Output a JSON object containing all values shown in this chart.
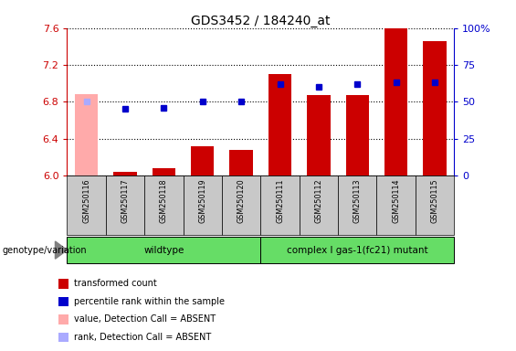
{
  "title": "GDS3452 / 184240_at",
  "samples": [
    "GSM250116",
    "GSM250117",
    "GSM250118",
    "GSM250119",
    "GSM250120",
    "GSM250111",
    "GSM250112",
    "GSM250113",
    "GSM250114",
    "GSM250115"
  ],
  "transformed_count": [
    6.88,
    6.04,
    6.08,
    6.32,
    6.28,
    7.1,
    6.87,
    6.87,
    7.6,
    7.46
  ],
  "percentile_rank": [
    50,
    45,
    46,
    50,
    50,
    62,
    60,
    62,
    63,
    63
  ],
  "absent_flags": [
    true,
    false,
    false,
    false,
    false,
    false,
    false,
    false,
    false,
    false
  ],
  "group_labels": [
    "wildtype",
    "complex I gas-1(fc21) mutant"
  ],
  "group_ranges": [
    [
      0,
      4
    ],
    [
      5,
      9
    ]
  ],
  "ylim_left": [
    6.0,
    7.6
  ],
  "ylim_right": [
    0,
    100
  ],
  "yticks_left": [
    6.0,
    6.4,
    6.8,
    7.2,
    7.6
  ],
  "yticks_right": [
    0,
    25,
    50,
    75,
    100
  ],
  "bar_width": 0.6,
  "bar_color_present": "#cc0000",
  "bar_color_absent": "#ffaaaa",
  "dot_color_present": "#0000cc",
  "dot_color_absent": "#aaaaff",
  "background_color": "#ffffff",
  "left_axis_color": "#cc0000",
  "right_axis_color": "#0000cc",
  "genotype_label": "genotype/variation",
  "green_color": "#66dd66",
  "gray_color": "#c8c8c8",
  "legend_items": [
    {
      "label": "transformed count",
      "color": "#cc0000"
    },
    {
      "label": "percentile rank within the sample",
      "color": "#0000cc"
    },
    {
      "label": "value, Detection Call = ABSENT",
      "color": "#ffaaaa"
    },
    {
      "label": "rank, Detection Call = ABSENT",
      "color": "#aaaaff"
    }
  ]
}
